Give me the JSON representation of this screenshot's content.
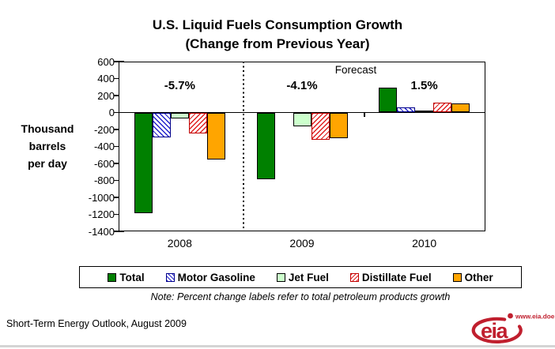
{
  "title": {
    "line1": "U.S. Liquid Fuels Consumption Growth",
    "line2": "(Change from Previous Year)"
  },
  "y_axis": {
    "title_lines": [
      "Thousand",
      "barrels",
      "per day"
    ],
    "ticks": [
      600,
      400,
      200,
      0,
      -200,
      -400,
      -600,
      -800,
      -1000,
      -1200,
      -1400
    ],
    "max": 600,
    "min": -1400
  },
  "x_axis": {
    "categories": [
      "2008",
      "2009",
      "2010"
    ]
  },
  "annotations": {
    "forecast_label": "Forecast",
    "percent_labels": [
      "-5.7%",
      "-4.1%",
      "1.5%"
    ]
  },
  "chart_data": {
    "type": "bar",
    "title": "U.S. Liquid Fuels Consumption Growth (Change from Previous Year)",
    "ylabel": "Thousand barrels per day",
    "ylim": [
      -1400,
      600
    ],
    "y_tick_step": 200,
    "grid": false,
    "legend_position": "bottom",
    "categories": [
      "2008",
      "2009",
      "2010"
    ],
    "series": [
      {
        "name": "Total",
        "pattern": "solid",
        "color": "#008000",
        "border_color": "#000000",
        "values": [
          -1190,
          -790,
          290
        ]
      },
      {
        "name": "Motor Gasoline",
        "pattern": "diag-back",
        "color": "#2222CC",
        "border_color": "#00008B",
        "values": [
          -290,
          0,
          60
        ]
      },
      {
        "name": "Jet Fuel",
        "pattern": "solid",
        "color": "#CCFFCC",
        "border_color": "#000000",
        "values": [
          -70,
          -160,
          20
        ]
      },
      {
        "name": "Distillate Fuel",
        "pattern": "diag-fwd",
        "color": "#E02020",
        "border_color": "#C00000",
        "values": [
          -250,
          -320,
          120
        ]
      },
      {
        "name": "Other",
        "pattern": "solid",
        "color": "#FFA500",
        "border_color": "#000000",
        "values": [
          -550,
          -300,
          110
        ]
      }
    ],
    "percent_change_labels": {
      "2008": "-5.7%",
      "2009": "-4.1%",
      "2010": "1.5%"
    },
    "forecast_years": [
      "2009",
      "2010"
    ]
  },
  "note": "Note: Percent change labels refer to total petroleum products growth",
  "footer": {
    "source": "Short-Term Energy Outlook, August 2009",
    "logo_text": "eia",
    "logo_url": "www.eia.doe.gov"
  },
  "colors": {
    "axis": "#000000",
    "background": "#FFFFFF",
    "logo_red": "#C01F2E"
  }
}
